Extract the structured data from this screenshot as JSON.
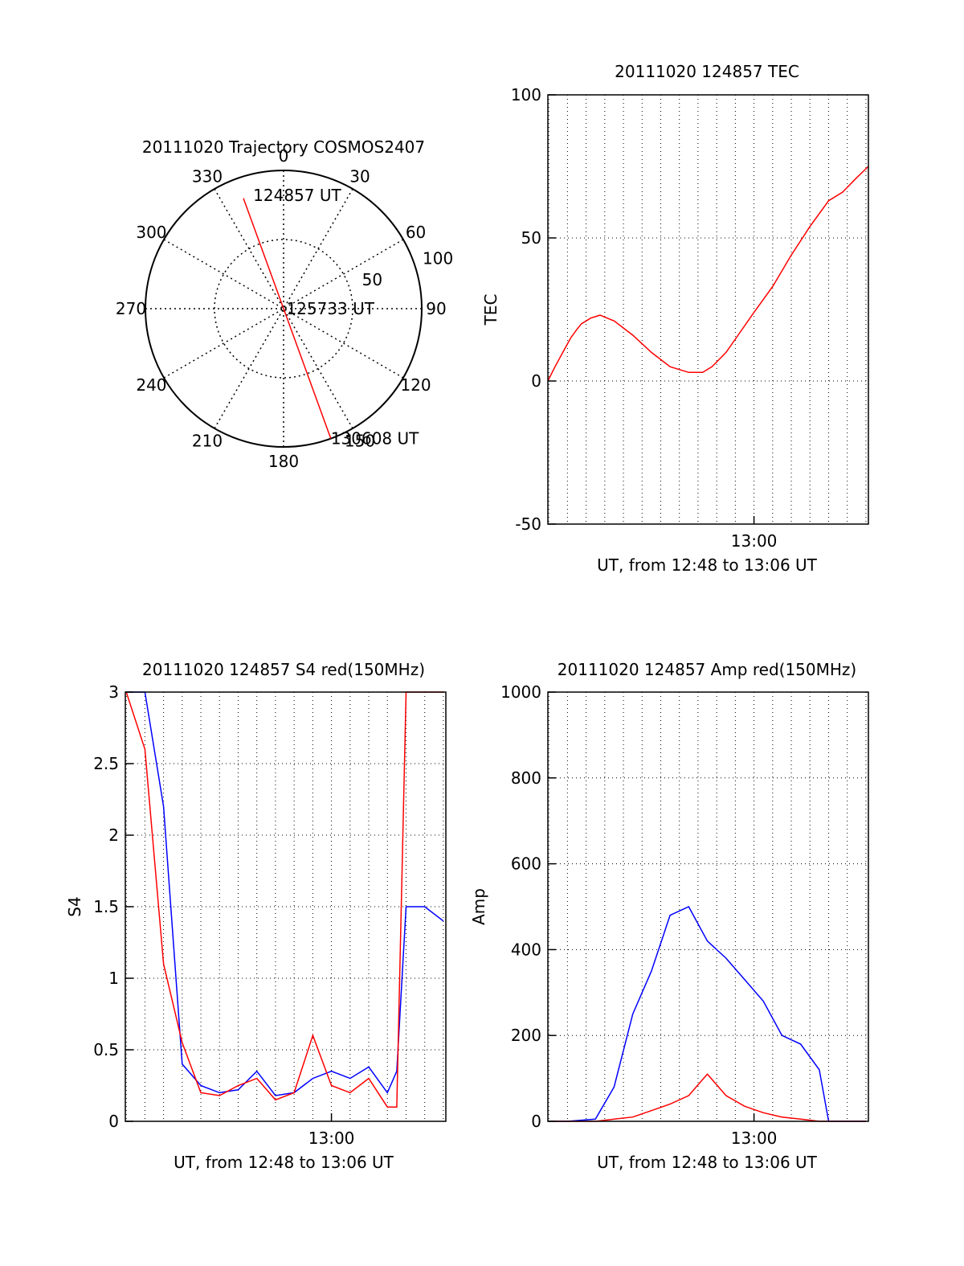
{
  "chart_data": [
    {
      "type": "polar",
      "title": "20111020 Trajectory COSMOS2407",
      "angle_labels": [
        "0",
        "30",
        "60",
        "90",
        "120",
        "150",
        "180",
        "210",
        "240",
        "270",
        "300",
        "330"
      ],
      "radius_labels": [
        "50",
        "100"
      ],
      "series": [
        {
          "color": "#ff0000",
          "azimuth_deg": [
            340,
            0,
            160
          ],
          "radius": [
            85,
            0,
            100
          ]
        }
      ],
      "annotations": [
        {
          "text": "124857 UT",
          "azimuth_deg": 345,
          "radius": 85
        },
        {
          "text": "125733 UT",
          "azimuth_deg": 90,
          "radius": 2
        },
        {
          "text": "130608 UT",
          "azimuth_deg": 160,
          "radius": 100
        }
      ]
    },
    {
      "type": "line",
      "title": "20111020 124857 TEC",
      "xlabel": "UT, from 12:48 to 13:06 UT",
      "ylabel": "TEC",
      "xlim": [
        "12:48:57",
        "13:06:08"
      ],
      "ylim": [
        -50,
        100
      ],
      "yticks": [
        "-50",
        "0",
        "50",
        "100"
      ],
      "xticks": [
        "13:00"
      ],
      "grid": true,
      "series": [
        {
          "color": "#ff0000",
          "x": [
            "12:48:57",
            "12:49:20",
            "12:49:45",
            "12:50:10",
            "12:50:30",
            "12:50:45",
            "12:51:15",
            "12:51:45",
            "12:52:30",
            "12:53:30",
            "12:54:30",
            "12:55:30",
            "12:56:30",
            "12:57:15",
            "12:57:45",
            "12:58:30",
            "12:59:15",
            "13:00:00",
            "13:01:00",
            "13:02:00",
            "13:03:00",
            "13:04:00",
            "13:04:45",
            "13:05:30",
            "13:06:08"
          ],
          "y": [
            0,
            5,
            10,
            15,
            18,
            20,
            22,
            23,
            21,
            16,
            10,
            5,
            3,
            3,
            5,
            10,
            17,
            24,
            33,
            44,
            54,
            63,
            66,
            71,
            75
          ]
        }
      ]
    },
    {
      "type": "line",
      "title": "20111020 124857 S4 red(150MHz)",
      "xlabel": "UT, from 12:48 to 13:06 UT",
      "ylabel": "S4",
      "xlim": [
        "12:48:57",
        "13:06:08"
      ],
      "ylim": [
        0,
        3
      ],
      "yticks": [
        "0",
        "0.5",
        "1",
        "1.5",
        "2",
        "2.5",
        "3"
      ],
      "xticks": [
        "13:00"
      ],
      "grid": true,
      "series": [
        {
          "color": "#0000ff",
          "x": [
            "12:49:00",
            "12:50:00",
            "12:51:00",
            "12:52:00",
            "12:53:00",
            "12:54:00",
            "12:55:00",
            "12:56:00",
            "12:57:00",
            "12:58:00",
            "12:59:00",
            "13:00:00",
            "13:01:00",
            "13:02:00",
            "13:03:00",
            "13:03:30",
            "13:04:00",
            "13:05:00",
            "13:06:00"
          ],
          "y": [
            3,
            3,
            2.2,
            0.4,
            0.25,
            0.2,
            0.22,
            0.35,
            0.18,
            0.2,
            0.3,
            0.35,
            0.3,
            0.38,
            0.2,
            0.35,
            1.5,
            1.5,
            1.4
          ]
        },
        {
          "color": "#ff0000",
          "x": [
            "12:49:00",
            "12:50:00",
            "12:51:00",
            "12:52:00",
            "12:53:00",
            "12:54:00",
            "12:55:00",
            "12:56:00",
            "12:56:40",
            "12:57:00",
            "12:58:00",
            "12:59:00",
            "13:00:00",
            "13:01:00",
            "13:02:00",
            "13:03:00",
            "13:03:30",
            "13:04:00",
            "13:05:00",
            "13:06:00"
          ],
          "y": [
            3,
            2.6,
            1.1,
            0.55,
            0.2,
            0.18,
            0.25,
            0.3,
            0.2,
            0.15,
            0.2,
            0.6,
            0.25,
            0.2,
            0.3,
            0.1,
            0.1,
            3,
            3,
            3
          ]
        }
      ]
    },
    {
      "type": "line",
      "title": "20111020 124857 Amp red(150MHz)",
      "xlabel": "UT, from 12:48 to 13:06 UT",
      "ylabel": "Amp",
      "xlim": [
        "12:48:57",
        "13:06:08"
      ],
      "ylim": [
        0,
        1000
      ],
      "yticks": [
        "0",
        "200",
        "400",
        "600",
        "800",
        "1000"
      ],
      "xticks": [
        "13:00"
      ],
      "grid": true,
      "series": [
        {
          "color": "#0000ff",
          "x": [
            "12:49:00",
            "12:50:00",
            "12:51:30",
            "12:52:30",
            "12:53:30",
            "12:54:30",
            "12:55:30",
            "12:56:30",
            "12:57:30",
            "12:58:30",
            "12:59:30",
            "13:00:30",
            "13:01:30",
            "13:02:30",
            "13:03:30",
            "13:04:00",
            "13:06:00"
          ],
          "y": [
            0,
            0,
            5,
            80,
            250,
            350,
            480,
            500,
            420,
            380,
            330,
            280,
            200,
            180,
            120,
            0,
            0
          ]
        },
        {
          "color": "#ff0000",
          "x": [
            "12:49:00",
            "12:51:30",
            "12:52:30",
            "12:53:30",
            "12:54:30",
            "12:55:30",
            "12:56:30",
            "12:57:30",
            "12:58:30",
            "12:59:30",
            "13:00:30",
            "13:01:30",
            "13:02:30",
            "13:03:30",
            "13:06:00"
          ],
          "y": [
            0,
            0,
            5,
            10,
            25,
            40,
            60,
            110,
            60,
            35,
            20,
            10,
            5,
            0,
            0
          ]
        }
      ]
    }
  ]
}
